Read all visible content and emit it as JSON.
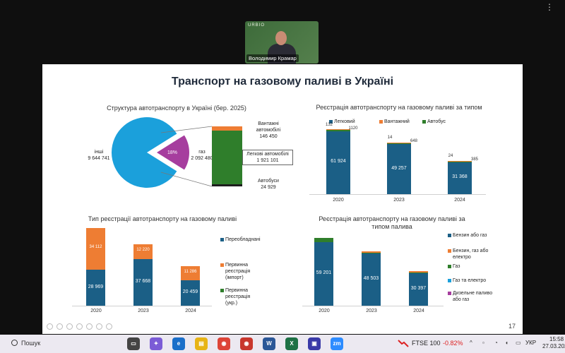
{
  "meeting": {
    "participant_name": "Володимир Крамар",
    "tile_brand": "URBIO"
  },
  "slide": {
    "title": "Транспорт на газовому паливі в Україні",
    "page_number": "17"
  },
  "chart1": {
    "title": "Структура автотранспорту в Україні (бер. 2025)",
    "pie": [
      {
        "label": "інші",
        "value": "9 644 741",
        "color": "#1ba0db"
      },
      {
        "label": "газ",
        "value": "2 092 480",
        "percent": "18%",
        "color": "#a63d9e"
      }
    ],
    "breakdown": [
      {
        "label": "Вантажні автомобілі",
        "value": "146 450",
        "color": "#ee7d33"
      },
      {
        "label": "Легкові автомобілі",
        "value": "1 921 101",
        "color": "#2f7e2b"
      },
      {
        "label": "Автобуси",
        "value": "24 929",
        "color": "#1e1e1e"
      }
    ]
  },
  "chart2": {
    "title": "Реєстрація автотранспорту на газовому паливі за типом",
    "legend": [
      {
        "label": "Легковий",
        "color": "#1b5f86"
      },
      {
        "label": "Вантажний",
        "color": "#ee7d33"
      },
      {
        "label": "Автобус",
        "color": "#2f7e2b"
      }
    ],
    "categories": [
      "2020",
      "2023",
      "2024"
    ],
    "passenger": [
      "61 924",
      "49 257",
      "31 368"
    ],
    "truck": [
      "132",
      "14",
      "24"
    ],
    "bus": [
      "1120",
      "648",
      "385"
    ]
  },
  "chart3": {
    "title": "Тип реєстрації автотранспорту на газовому паливі",
    "legend": [
      {
        "label": "Переобладнані",
        "color": "#1b5f86"
      },
      {
        "label": "Первинна реєстрація (імпорт)",
        "color": "#ee7d33"
      },
      {
        "label": "Первинна реєстрація (укр.)",
        "color": "#2f7e2b"
      }
    ],
    "categories": [
      "2020",
      "2023",
      "2024"
    ],
    "converted": [
      "28 969",
      "37 668",
      "20 459"
    ],
    "import": [
      "34 112",
      "12 220",
      "11 286"
    ]
  },
  "chart4": {
    "title": "Реєстрація автотранспорту на газовому паливі за типом палива",
    "legend": [
      {
        "label": "Бензин або газ",
        "color": "#1b5f86"
      },
      {
        "label": "Бензин, газ або електро",
        "color": "#ee7d33"
      },
      {
        "label": "Газ",
        "color": "#2f7e2b"
      },
      {
        "label": "Газ та електро",
        "color": "#1ba0db"
      },
      {
        "label": "Дизельне паливо або газ",
        "color": "#a63d9e"
      }
    ],
    "categories": [
      "2020",
      "2023",
      "2024"
    ],
    "petrol_gas": [
      "59 201",
      "48 503",
      "30 397"
    ]
  },
  "chart_data": [
    {
      "type": "pie",
      "title": "Структура автотранспорту в Україні (бер. 2025)",
      "slices": [
        {
          "name": "інші",
          "value": 9644741
        },
        {
          "name": "газ",
          "value": 2092480
        }
      ],
      "gas_breakdown": [
        {
          "name": "Вантажні автомобілі",
          "value": 146450
        },
        {
          "name": "Легкові автомобілі",
          "value": 1921101
        },
        {
          "name": "Автобуси",
          "value": 24929
        }
      ]
    },
    {
      "type": "bar",
      "title": "Реєстрація автотранспорту на газовому паливі за типом",
      "categories": [
        "2020",
        "2023",
        "2024"
      ],
      "series": [
        {
          "name": "Легковий",
          "values": [
            61924,
            49257,
            31368
          ]
        },
        {
          "name": "Вантажний",
          "values": [
            132,
            14,
            24
          ]
        },
        {
          "name": "Автобус",
          "values": [
            1120,
            648,
            385
          ]
        }
      ]
    },
    {
      "type": "bar",
      "title": "Тип реєстрації автотранспорту на газовому паливі",
      "categories": [
        "2020",
        "2023",
        "2024"
      ],
      "series": [
        {
          "name": "Переобладнані",
          "values": [
            28969,
            37668,
            20459
          ]
        },
        {
          "name": "Первинна реєстрація (імпорт)",
          "values": [
            34112,
            12220,
            11286
          ]
        }
      ]
    },
    {
      "type": "bar",
      "title": "Реєстрація автотранспорту на газовому паливі за типом палива",
      "categories": [
        "2020",
        "2023",
        "2024"
      ],
      "series": [
        {
          "name": "Бензин або газ",
          "values": [
            59201,
            48503,
            30397
          ]
        }
      ]
    }
  ],
  "taskbar": {
    "search_label": "Пошук",
    "ticker_name": "FTSE 100",
    "ticker_change": "-0.82%",
    "language": "УКР",
    "time": "15:58",
    "date": "27.03.2025"
  }
}
